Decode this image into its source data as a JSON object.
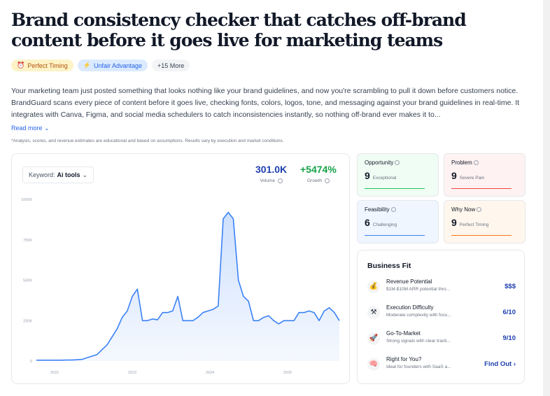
{
  "title": "Brand consistency checker that catches off-brand content before it goes live for marketing teams",
  "tags": [
    {
      "icon": "alarm-clock-icon",
      "label": "Perfect Timing"
    },
    {
      "icon": "lightning-icon",
      "label": "Unfair Advantage"
    },
    {
      "label": "+15 More"
    }
  ],
  "description": "Your marketing team just posted something that looks nothing like your brand guidelines, and now you're scrambling to pull it down before customers notice. BrandGuard scans every piece of content before it goes live, checking fonts, colors, logos, tone, and messaging against your brand guidelines in real-time. It integrates with Canva, Figma, and social media schedulers to catch inconsistencies instantly, so nothing off-brand ever makes it to...",
  "read_more": "Read more",
  "disclaimer": "*Analysis, scores, and revenue estimates are educational and based on assumptions. Results vary by execution and market conditions.",
  "keyword": {
    "label": "Keyword:",
    "value": "Ai tools"
  },
  "metrics": {
    "volume": {
      "value": "301.0K",
      "label": "Volume"
    },
    "growth": {
      "value": "+5474%",
      "label": "Growth"
    }
  },
  "chart_data": {
    "type": "area",
    "title": "",
    "xlabel": "",
    "ylabel": "",
    "y_tick_labels": [
      "1000K",
      "750K",
      "500K",
      "250K",
      "0"
    ],
    "x_tick_labels": [
      "2022",
      "2023",
      "2024",
      "2025"
    ],
    "ylim": [
      0,
      1000
    ],
    "color": "#3b82f6",
    "grid": false,
    "series": [
      {
        "values": [
          5,
          5,
          5,
          5,
          5,
          5,
          6,
          6,
          8,
          10,
          20,
          30,
          40,
          70,
          100,
          150,
          200,
          270,
          310,
          400,
          445,
          250,
          250,
          260,
          255,
          300,
          300,
          310,
          400,
          250,
          250,
          250,
          270,
          300,
          310,
          320,
          340,
          880,
          920,
          880,
          500,
          400,
          370,
          250,
          250,
          270,
          280,
          250,
          230,
          250,
          250,
          250,
          300,
          300,
          310,
          300,
          250,
          310,
          330,
          300,
          250
        ]
      }
    ]
  },
  "score_cards": [
    {
      "label": "Opportunity",
      "score": "9",
      "desc": "Exceptional",
      "color": "#22c55e",
      "bg": "#f0fdf4"
    },
    {
      "label": "Problem",
      "score": "9",
      "desc": "Severe Pain",
      "color": "#ef4444",
      "bg": "#fef2f2"
    },
    {
      "label": "Feasibility",
      "score": "6",
      "desc": "Challenging",
      "color": "#3b82f6",
      "bg": "#eff6ff"
    },
    {
      "label": "Why Now",
      "score": "9",
      "desc": "Perfect Timing",
      "color": "#f97316",
      "bg": "#fff7ed"
    }
  ],
  "business_fit": {
    "title": "Business Fit",
    "rows": [
      {
        "icon": "money-bag-icon",
        "glyph": "💰",
        "name": "Revenue Potential",
        "desc": "$1M-$10M ARR potential thro...",
        "value": "$$$"
      },
      {
        "icon": "tools-icon",
        "glyph": "⚒",
        "name": "Execution Difficulty",
        "desc": "Moderate complexity with focu...",
        "value": "6/10"
      },
      {
        "icon": "rocket-icon",
        "glyph": "🚀",
        "name": "Go-To-Market",
        "desc": "Strong signals with clear tracti...",
        "value": "9/10"
      },
      {
        "icon": "brain-icon",
        "glyph": "🧠",
        "name": "Right for You?",
        "desc": "Ideal for founders with SaaS a...",
        "value": "Find Out ›"
      }
    ]
  }
}
